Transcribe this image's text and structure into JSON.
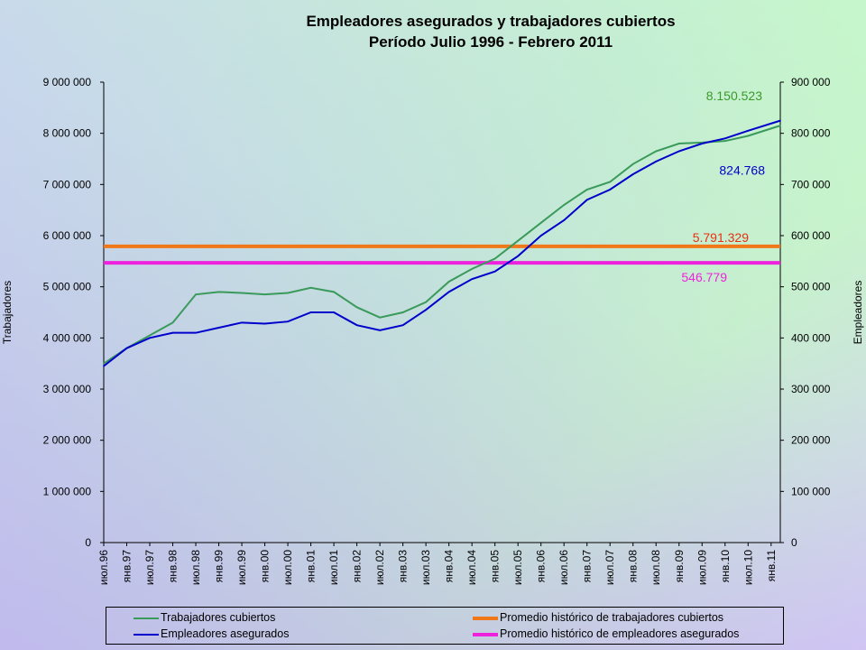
{
  "chart_data": {
    "type": "line",
    "title": "Empleadores asegurados y trabajadores cubiertos",
    "subtitle": "Período Julio 1996 - Febrero 2011",
    "ylabel_left": "Trabajadores",
    "ylabel_right": "Empleadores",
    "ylim_left": [
      0,
      9000000
    ],
    "ylim_right": [
      0,
      900000
    ],
    "y_ticks_left": [
      "9 000 000",
      "8 000 000",
      "7 000 000",
      "6 000 000",
      "5 000 000",
      "4 000 000",
      "3 000 000",
      "2 000 000",
      "1 000 000",
      "0"
    ],
    "y_ticks_right": [
      "900 000",
      "800 000",
      "700 000",
      "600 000",
      "500 000",
      "400 000",
      "300 000",
      "200 000",
      "100 000",
      "0"
    ],
    "x_tick_labels": [
      "июл.96",
      "янв.97",
      "июл.97",
      "янв.98",
      "июл.98",
      "янв.99",
      "июл.99",
      "янв.00",
      "июл.00",
      "янв.01",
      "июл.01",
      "янв.02",
      "июл.02",
      "янв.03",
      "июл.03",
      "янв.04",
      "июл.04",
      "янв.05",
      "июл.05",
      "янв.06",
      "июл.06",
      "янв.07",
      "июл.07",
      "янв.08",
      "июл.08",
      "янв.09",
      "июл.09",
      "янв.10",
      "июл.10",
      "янв.11"
    ],
    "grid": false,
    "legend_position": "bottom",
    "series": [
      {
        "name": "Trabajadores cubiertos",
        "axis": "left",
        "color": "#3a9a5a",
        "x": [
          "июл.96",
          "янв.97",
          "июл.97",
          "янв.98",
          "июл.98",
          "янв.99",
          "июл.99",
          "янв.00",
          "июл.00",
          "янв.01",
          "июл.01",
          "янв.02",
          "июл.02",
          "янв.03",
          "июл.03",
          "янв.04",
          "июл.04",
          "янв.05",
          "июл.05",
          "янв.06",
          "июл.06",
          "янв.07",
          "июл.07",
          "янв.08",
          "июл.08",
          "янв.09",
          "июл.09",
          "янв.10",
          "июл.10",
          "янв.11"
        ],
        "values": [
          3500000,
          3800000,
          4050000,
          4300000,
          4850000,
          4900000,
          4880000,
          4850000,
          4880000,
          4980000,
          4900000,
          4600000,
          4400000,
          4500000,
          4700000,
          5100000,
          5350000,
          5550000,
          5900000,
          6250000,
          6600000,
          6900000,
          7050000,
          7400000,
          7650000,
          7800000,
          7820000,
          7850000,
          7950000,
          8150523
        ]
      },
      {
        "name": "Empleadores asegurados",
        "axis": "right",
        "color": "#0000cc",
        "x": [
          "июл.96",
          "янв.97",
          "июл.97",
          "янв.98",
          "июл.98",
          "янв.99",
          "июл.99",
          "янв.00",
          "июл.00",
          "янв.01",
          "июл.01",
          "янв.02",
          "июл.02",
          "янв.03",
          "июл.03",
          "янв.04",
          "июл.04",
          "янв.05",
          "июл.05",
          "янв.06",
          "июл.06",
          "янв.07",
          "июл.07",
          "янв.08",
          "июл.08",
          "янв.09",
          "июл.09",
          "янв.10",
          "июл.10",
          "янв.11"
        ],
        "values": [
          345000,
          380000,
          400000,
          410000,
          410000,
          420000,
          430000,
          428000,
          432000,
          450000,
          450000,
          425000,
          415000,
          425000,
          455000,
          490000,
          515000,
          530000,
          560000,
          600000,
          630000,
          670000,
          690000,
          720000,
          745000,
          765000,
          780000,
          790000,
          805000,
          824768
        ]
      },
      {
        "name": "Promedio histórico de trabajadores cubiertos",
        "axis": "left",
        "color": "#f07818",
        "value": 5791329
      },
      {
        "name": "Promedio histórico de empleadores asegurados",
        "axis": "right",
        "color": "#ee22dd",
        "value": 546779
      }
    ],
    "annotations": [
      {
        "text": "8.150.523",
        "color": "#3a9a2a"
      },
      {
        "text": "824.768",
        "color": "#0000cc"
      },
      {
        "text": "5.791.329",
        "color": "#e83010"
      },
      {
        "text": "546.779",
        "color": "#ee22dd"
      }
    ]
  }
}
